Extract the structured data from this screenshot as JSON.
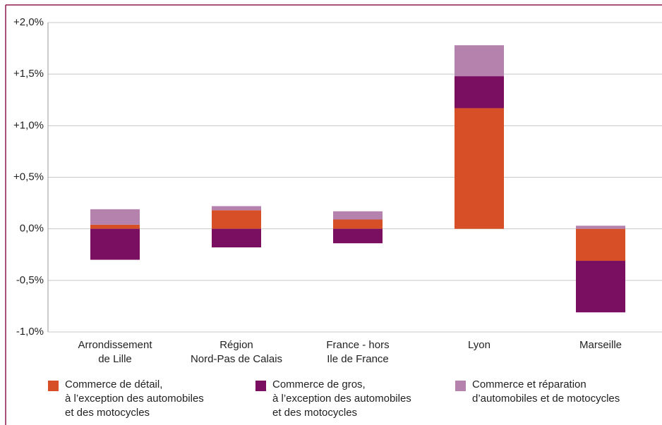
{
  "chart_data": {
    "type": "stacked_bar",
    "categories": [
      "Arrondissement\nde Lille",
      "Région\nNord-Pas de Calais",
      "France - hors\nIle de France",
      "Lyon",
      "Marseille"
    ],
    "series": [
      {
        "name": "Commerce de détail,\nà l’exception des automobiles\net des motocycles",
        "color": "#d64f27",
        "values": [
          0.04,
          0.18,
          0.09,
          1.17,
          -0.31
        ]
      },
      {
        "name": "Commerce de gros,\nà l’exception des automobiles\net des motocycles",
        "color": "#7a0f62",
        "values": [
          -0.3,
          -0.18,
          -0.14,
          0.31,
          -0.5
        ]
      },
      {
        "name": "Commerce et réparation\nd’automobiles et de motocycles",
        "color": "#b482ad",
        "values": [
          0.15,
          0.04,
          0.08,
          0.3,
          0.03
        ]
      }
    ],
    "ylim": [
      -1.0,
      2.0
    ],
    "yticks": [
      {
        "value": -1.0,
        "label": "-1,0%"
      },
      {
        "value": -0.5,
        "label": "-0,5%"
      },
      {
        "value": 0.0,
        "label": "0,0%"
      },
      {
        "value": 0.5,
        "label": "+0,5%"
      },
      {
        "value": 1.0,
        "label": "+1,0%"
      },
      {
        "value": 1.5,
        "label": "+1,5%"
      },
      {
        "value": 2.0,
        "label": "+2,0%"
      }
    ],
    "grid": true,
    "legend": "bottom"
  }
}
